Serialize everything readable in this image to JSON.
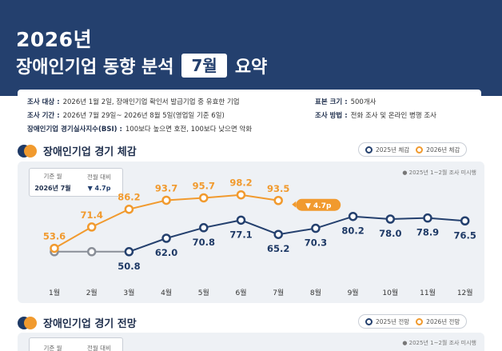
{
  "header": {
    "year": "2026년",
    "title_prefix": "장애인기업 동향 분석",
    "month_badge": "7월",
    "title_suffix": "요약"
  },
  "info": {
    "target_label": "조사 대상 :",
    "target_value": "2026년 1월 2일, 장애인기업 확인서 발급기업 중 유효한 기업",
    "period_label": "조사 기간 :",
    "period_value": "2026년 7월 29일~ 2026년 8월 5일(영업일 기준 6일)",
    "bsi_label": "장애인기업 경기실사지수(BSI) :",
    "bsi_value": "100보다 높으면 호전, 100보다 낮으면 악화",
    "sample_label": "표본 크기 :",
    "sample_value": "500개사",
    "method_label": "조사 방법 :",
    "method_value": "전화 조사 및 온라인 병행 조사"
  },
  "section1": {
    "title": "장애인기업 경기 체감",
    "legend": [
      "2025년 체감",
      "2026년 체감"
    ],
    "ref_header_1": "기준 월",
    "ref_header_2": "전월 대비",
    "ref_value_1": "2026년 7월",
    "ref_value_2": "▼ 4.7p",
    "note": "● 2025년 1~2월 조사 미시행",
    "change_badge": "▼ 4.7p"
  },
  "section2": {
    "title": "장애인기업 경기 전망",
    "legend": [
      "2025년 전망",
      "2026년 전망"
    ],
    "ref_header_1": "기준 월",
    "ref_header_2": "전월 대비",
    "note": "● 2025년 1~2월 조사 미시행"
  },
  "colors": {
    "navy": "#24406e",
    "orange": "#f19a2e",
    "gray": "#8a8f98"
  },
  "chart_data": {
    "type": "line",
    "categories": [
      "1월",
      "2월",
      "3월",
      "4월",
      "5월",
      "6월",
      "7월",
      "8월",
      "9월",
      "10월",
      "11월",
      "12월"
    ],
    "series": [
      {
        "name": "2025년 체감",
        "values": [
          null,
          null,
          50.8,
          62.0,
          70.8,
          77.1,
          65.2,
          70.3,
          80.2,
          78.0,
          78.9,
          76.5
        ]
      },
      {
        "name": "2026년 체감",
        "values": [
          53.6,
          71.4,
          86.2,
          93.7,
          95.7,
          98.2,
          93.5,
          null,
          null,
          null,
          null,
          null
        ]
      }
    ],
    "ylim": [
      10,
      110
    ]
  }
}
